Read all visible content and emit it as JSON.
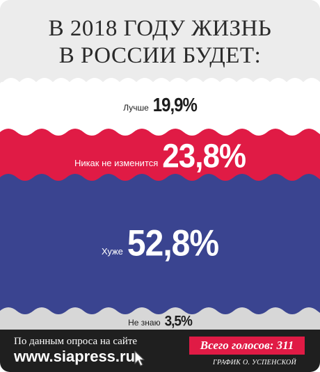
{
  "title": {
    "line1": "В 2018 ГОДУ ЖИЗНЬ",
    "line2": "В РОССИИ БУДЕТ:"
  },
  "answers": [
    {
      "label": "Лучше",
      "value": "19,9%"
    },
    {
      "label": "Никак не изменится",
      "value": "23,8%"
    },
    {
      "label": "Хуже",
      "value": "52,8%"
    },
    {
      "label": "Не знаю",
      "value": "3,5%"
    }
  ],
  "footer": {
    "source": "По данным опроса на сайте",
    "site": "www.siapress.ru",
    "votes": "Всего голосов: 311",
    "credit": "ГРАФИК О. УСПЕНСКОЙ"
  },
  "colors": {
    "top_band": "#ececec",
    "white_band": "#ffffff",
    "red_band": "#e01b45",
    "blue_band": "#3a4490",
    "gray_band": "#d7d7d7",
    "footer": "#1f1f1f"
  }
}
